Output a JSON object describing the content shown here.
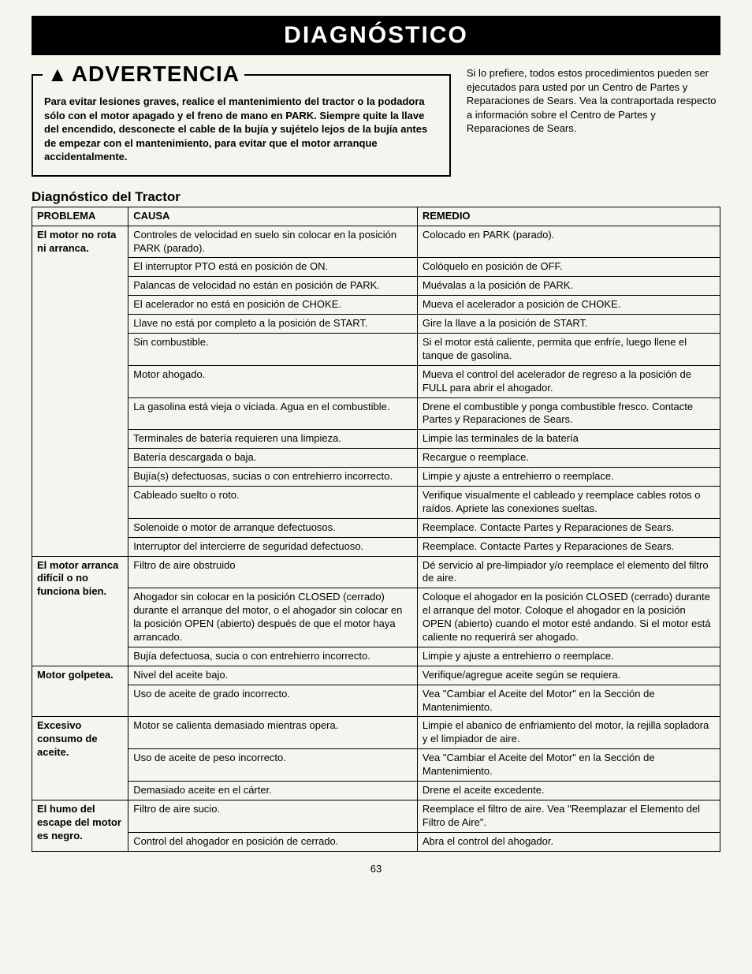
{
  "banner": "DIAGNÓSTICO",
  "warning": {
    "title": "ADVERTENCIA",
    "icon": "▲",
    "body": "Para evitar lesiones graves, realice el mantenimiento del tractor o la podadora sólo con el motor apagado y el freno de mano en PARK. Siempre quite la llave del encendido, desconecte el cable de la bujía y sujételo lejos de la bujía antes de empezar con el mantenimiento, para evitar que el motor arranque accidentalmente."
  },
  "side_note": "Si lo prefiere, todos estos procedimientos pueden ser ejecutados para usted por un Centro de Partes y Reparaciones de Sears. Vea la contraportada respecto a información sobre el Centro de Partes y Reparaciones de Sears.",
  "section_title": "Diagnóstico del Tractor",
  "headers": {
    "c1": "PROBLEMA",
    "c2": "CAUSA",
    "c3": "REMEDIO"
  },
  "rows": [
    {
      "problem": "El motor no rota ni arranca.",
      "span": 14,
      "causa": "Controles de velocidad en suelo sin colocar en la posición PARK (parado).",
      "remedio": "Colocado en PARK (parado)."
    },
    {
      "causa": "El interruptor PTO está en posición de ON.",
      "remedio": "Colóquelo en posición de OFF."
    },
    {
      "causa": "Palancas de velocidad no están en posición de PARK.",
      "remedio": "Muévalas a la posición de PARK."
    },
    {
      "causa": "El acelerador no está en posición de CHOKE.",
      "remedio": "Mueva el acelerador a posición de CHOKE."
    },
    {
      "causa": "Llave no está por completo a la posición de START.",
      "remedio": "Gire la llave a la posición de START."
    },
    {
      "causa": "Sin combustible.",
      "remedio": "Si el motor está caliente, permita que enfríe, luego llene el tanque de gasolina."
    },
    {
      "causa": "Motor ahogado.",
      "remedio": "Mueva el control del acelerador de regreso a la posición de FULL para abrir el ahogador."
    },
    {
      "causa": "La gasolina está vieja o viciada. Agua en el combustible.",
      "remedio": "Drene el combustible y ponga combustible fresco. Contacte Partes y Reparaciones de Sears."
    },
    {
      "causa": "Terminales de batería requieren una limpieza.",
      "remedio": "Limpie las terminales de la batería"
    },
    {
      "causa": "Batería descargada o baja.",
      "remedio": "Recargue o reemplace."
    },
    {
      "causa": "Bujía(s) defectuosas, sucias o con entrehierro incorrecto.",
      "remedio": "Limpie y ajuste a entrehierro o reemplace."
    },
    {
      "causa": "Cableado suelto o roto.",
      "remedio": "Verifique visualmente el cableado y reemplace cables rotos o raídos. Apriete las conexiones sueltas."
    },
    {
      "causa": "Solenoide o motor de arranque defectuosos.",
      "remedio": "Reemplace. Contacte Partes y Reparaciones de Sears."
    },
    {
      "causa": "Interruptor del intercierre de seguridad defectuoso.",
      "remedio": "Reemplace. Contacte Partes y Reparaciones de Sears."
    },
    {
      "problem": "El motor arranca difícil o no funciona bien.",
      "span": 3,
      "causa": "Filtro de aire obstruido",
      "remedio": "Dé servicio al pre-limpiador y/o reemplace el elemento del filtro de aire."
    },
    {
      "causa": "Ahogador sin colocar en la posición CLOSED (cerrado) durante el arranque del motor, o el ahogador sin colocar en la posición OPEN (abierto) después de que el motor haya arrancado.",
      "remedio": "Coloque el ahogador en la posición CLOSED (cerrado) durante el arranque del motor. Coloque el ahogador en la posición OPEN (abierto) cuando el motor esté andando. Si el motor está caliente no requerirá ser ahogado."
    },
    {
      "causa": "Bujía defectuosa, sucia o con entrehierro incorrecto.",
      "remedio": "Limpie y ajuste a entrehierro o reemplace."
    },
    {
      "problem": "Motor golpetea.",
      "span": 2,
      "causa": "Nivel del aceite bajo.",
      "remedio": "Verifique/agregue aceite según se requiera."
    },
    {
      "causa": "Uso de aceite de grado incorrecto.",
      "remedio": "Vea \"Cambiar el Aceite del Motor\" en la Sección de Mantenimiento."
    },
    {
      "problem": "Excesivo consumo de aceite.",
      "span": 3,
      "causa": "Motor se calienta demasiado mientras opera.",
      "remedio": "Limpie el abanico de enfriamiento del motor, la rejilla sopladora y el limpiador de aire."
    },
    {
      "causa": "Uso de aceite de peso incorrecto.",
      "remedio": "Vea \"Cambiar el Aceite del Motor\" en la Sección de Mantenimiento."
    },
    {
      "causa": "Demasiado aceite en el cárter.",
      "remedio": "Drene el aceite excedente."
    },
    {
      "problem": "El humo del escape del motor es negro.",
      "span": 2,
      "causa": "Filtro de aire sucio.",
      "remedio": "Reemplace el filtro de aire. Vea \"Reemplazar el Elemento del Filtro de Aire\"."
    },
    {
      "causa": "Control del ahogador en posición de cerrado.",
      "remedio": "Abra el control del ahogador."
    }
  ],
  "page_number": "63"
}
